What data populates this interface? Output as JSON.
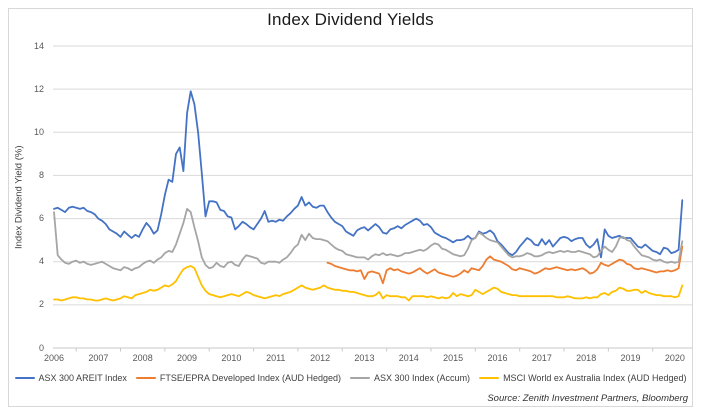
{
  "card": {
    "title": "Index Dividend Yields",
    "source": "Source: Zenith Investment Partners, Bloomberg"
  },
  "chart_data": {
    "type": "line",
    "title": "Index Dividend Yields",
    "xlabel": "",
    "ylabel": "Index Dividend Yield (%)",
    "ylim": [
      0,
      14
    ],
    "y_ticks": [
      0,
      2,
      4,
      6,
      8,
      10,
      12,
      14
    ],
    "x_year_labels": [
      "2006",
      "2007",
      "2008",
      "2009",
      "2010",
      "2011",
      "2012",
      "2013",
      "2014",
      "2015",
      "2016",
      "2017",
      "2018",
      "2019",
      "2020"
    ],
    "x_start_year": 2006,
    "points_per_year": 12,
    "grid": true,
    "legend_position": "bottom",
    "grid_color": "#d9d9d9",
    "axis_color": "#c9c9c9",
    "series": [
      {
        "name": "ASX 300 AREIT Index",
        "color": "#4472C4",
        "values": [
          6.45,
          6.5,
          6.4,
          6.3,
          6.5,
          6.55,
          6.5,
          6.45,
          6.5,
          6.35,
          6.3,
          6.2,
          6.0,
          5.9,
          5.75,
          5.5,
          5.4,
          5.3,
          5.15,
          5.4,
          5.25,
          5.1,
          5.25,
          5.15,
          5.5,
          5.8,
          5.6,
          5.3,
          5.45,
          6.2,
          7.1,
          7.8,
          7.7,
          9.0,
          9.3,
          8.2,
          10.9,
          11.9,
          11.3,
          10.0,
          8.1,
          6.1,
          6.8,
          6.8,
          6.75,
          6.4,
          6.35,
          6.1,
          6.05,
          5.5,
          5.65,
          5.85,
          5.75,
          5.6,
          5.5,
          5.75,
          6.0,
          6.35,
          5.85,
          5.9,
          5.85,
          5.95,
          5.9,
          6.1,
          6.25,
          6.45,
          6.6,
          7.0,
          6.6,
          6.75,
          6.55,
          6.5,
          6.6,
          6.6,
          6.3,
          6.05,
          5.85,
          5.75,
          5.65,
          5.4,
          5.3,
          5.2,
          5.45,
          5.55,
          5.6,
          5.45,
          5.6,
          5.75,
          5.6,
          5.35,
          5.3,
          5.5,
          5.55,
          5.65,
          5.55,
          5.7,
          5.8,
          5.9,
          6.0,
          5.9,
          5.7,
          5.75,
          5.6,
          5.35,
          5.25,
          5.15,
          5.1,
          5.0,
          4.9,
          5.0,
          5.0,
          5.05,
          5.2,
          5.05,
          5.1,
          5.4,
          5.3,
          5.35,
          5.45,
          5.3,
          4.95,
          4.8,
          4.6,
          4.4,
          4.3,
          4.45,
          4.7,
          4.9,
          5.1,
          5.0,
          4.8,
          4.75,
          5.05,
          4.8,
          5.0,
          4.7,
          4.9,
          5.1,
          5.15,
          5.1,
          4.95,
          5.05,
          5.1,
          5.1,
          4.8,
          4.65,
          4.8,
          5.05,
          4.2,
          5.5,
          5.2,
          5.1,
          5.15,
          5.2,
          5.1,
          5.1,
          5.1,
          4.9,
          4.7,
          4.65,
          4.8,
          4.65,
          4.5,
          4.45,
          4.35,
          4.65,
          4.6,
          4.4,
          4.45,
          4.55,
          6.85
        ]
      },
      {
        "name": "FTSE/EPRA Developed Index (AUD Hedged)",
        "color": "#ED7D31",
        "values": [
          null,
          null,
          null,
          null,
          null,
          null,
          null,
          null,
          null,
          null,
          null,
          null,
          null,
          null,
          null,
          null,
          null,
          null,
          null,
          null,
          null,
          null,
          null,
          null,
          null,
          null,
          null,
          null,
          null,
          null,
          null,
          null,
          null,
          null,
          null,
          null,
          null,
          null,
          null,
          null,
          null,
          null,
          null,
          null,
          null,
          null,
          null,
          null,
          null,
          null,
          null,
          null,
          null,
          null,
          null,
          null,
          null,
          null,
          null,
          null,
          null,
          null,
          null,
          null,
          null,
          null,
          null,
          null,
          null,
          null,
          null,
          null,
          null,
          null,
          3.95,
          3.9,
          3.8,
          3.75,
          3.7,
          3.65,
          3.6,
          3.6,
          3.55,
          3.6,
          3.2,
          3.5,
          3.55,
          3.5,
          3.45,
          3.0,
          3.6,
          3.7,
          3.6,
          3.65,
          3.55,
          3.5,
          3.45,
          3.5,
          3.6,
          3.7,
          3.55,
          3.45,
          3.55,
          3.65,
          3.5,
          3.45,
          3.4,
          3.35,
          3.3,
          3.35,
          3.45,
          3.6,
          3.5,
          3.7,
          3.65,
          3.6,
          3.8,
          4.1,
          4.25,
          4.1,
          4.05,
          4.0,
          3.9,
          3.8,
          3.65,
          3.6,
          3.7,
          3.65,
          3.6,
          3.55,
          3.45,
          3.5,
          3.6,
          3.7,
          3.65,
          3.7,
          3.75,
          3.7,
          3.65,
          3.6,
          3.65,
          3.6,
          3.65,
          3.7,
          3.6,
          3.45,
          3.5,
          3.65,
          3.95,
          3.85,
          3.8,
          3.9,
          4.0,
          4.1,
          4.05,
          3.9,
          3.85,
          3.7,
          3.65,
          3.7,
          3.65,
          3.6,
          3.55,
          3.5,
          3.55,
          3.55,
          3.6,
          3.55,
          3.6,
          3.7,
          4.7
        ]
      },
      {
        "name": "ASX 300 Index (Accum)",
        "color": "#A5A5A5",
        "values": [
          6.3,
          4.3,
          4.1,
          3.95,
          3.9,
          4.0,
          4.05,
          3.95,
          4.0,
          3.9,
          3.85,
          3.9,
          3.95,
          4.0,
          3.9,
          3.8,
          3.7,
          3.65,
          3.6,
          3.75,
          3.7,
          3.6,
          3.7,
          3.75,
          3.9,
          4.0,
          4.05,
          3.95,
          4.1,
          4.2,
          4.4,
          4.5,
          4.45,
          4.8,
          5.3,
          5.8,
          6.45,
          6.3,
          5.6,
          4.95,
          4.2,
          3.85,
          3.7,
          3.75,
          3.95,
          3.8,
          3.75,
          3.95,
          4.0,
          3.85,
          3.8,
          4.1,
          4.3,
          4.25,
          4.2,
          4.15,
          3.95,
          3.9,
          4.0,
          4.0,
          4.0,
          3.95,
          4.1,
          4.2,
          4.4,
          4.65,
          4.8,
          5.25,
          5.0,
          5.3,
          5.1,
          5.05,
          5.05,
          5.0,
          4.95,
          4.8,
          4.65,
          4.55,
          4.5,
          4.35,
          4.3,
          4.25,
          4.2,
          4.2,
          4.2,
          4.1,
          4.25,
          4.35,
          4.3,
          4.4,
          4.3,
          4.35,
          4.3,
          4.25,
          4.3,
          4.4,
          4.4,
          4.45,
          4.5,
          4.55,
          4.5,
          4.6,
          4.75,
          4.85,
          4.8,
          4.6,
          4.55,
          4.45,
          4.35,
          4.3,
          4.25,
          4.3,
          4.6,
          5.0,
          5.1,
          5.35,
          5.25,
          5.1,
          5.0,
          4.95,
          4.9,
          4.7,
          4.5,
          4.3,
          4.2,
          4.25,
          4.25,
          4.3,
          4.4,
          4.35,
          4.25,
          4.25,
          4.3,
          4.4,
          4.45,
          4.4,
          4.45,
          4.5,
          4.45,
          4.5,
          4.45,
          4.45,
          4.5,
          4.45,
          4.4,
          4.35,
          4.2,
          4.25,
          4.5,
          4.7,
          4.55,
          4.45,
          4.7,
          5.1,
          5.15,
          5.0,
          4.95,
          4.7,
          4.5,
          4.3,
          4.25,
          4.2,
          4.1,
          4.05,
          4.1,
          4.0,
          3.95,
          4.0,
          3.95,
          4.0,
          4.95
        ]
      },
      {
        "name": "MSCI World ex Australia Index (AUD Hedged)",
        "color": "#FFC000",
        "values": [
          2.25,
          2.25,
          2.2,
          2.25,
          2.3,
          2.35,
          2.35,
          2.3,
          2.3,
          2.25,
          2.25,
          2.2,
          2.2,
          2.25,
          2.3,
          2.25,
          2.2,
          2.25,
          2.3,
          2.4,
          2.35,
          2.3,
          2.45,
          2.5,
          2.55,
          2.6,
          2.7,
          2.65,
          2.7,
          2.8,
          2.9,
          2.85,
          2.95,
          3.1,
          3.4,
          3.65,
          3.75,
          3.8,
          3.7,
          3.3,
          2.9,
          2.65,
          2.5,
          2.45,
          2.4,
          2.35,
          2.4,
          2.45,
          2.5,
          2.45,
          2.4,
          2.5,
          2.6,
          2.55,
          2.45,
          2.4,
          2.35,
          2.3,
          2.35,
          2.4,
          2.45,
          2.4,
          2.5,
          2.55,
          2.6,
          2.7,
          2.8,
          2.9,
          2.8,
          2.75,
          2.7,
          2.75,
          2.8,
          2.9,
          2.8,
          2.75,
          2.7,
          2.7,
          2.65,
          2.65,
          2.6,
          2.6,
          2.55,
          2.5,
          2.45,
          2.4,
          2.4,
          2.45,
          2.6,
          2.3,
          2.45,
          2.4,
          2.4,
          2.4,
          2.35,
          2.35,
          2.2,
          2.4,
          2.4,
          2.4,
          2.4,
          2.35,
          2.4,
          2.35,
          2.3,
          2.35,
          2.3,
          2.35,
          2.55,
          2.4,
          2.5,
          2.45,
          2.4,
          2.45,
          2.7,
          2.6,
          2.5,
          2.6,
          2.7,
          2.8,
          2.75,
          2.6,
          2.55,
          2.5,
          2.45,
          2.45,
          2.4,
          2.4,
          2.4,
          2.4,
          2.4,
          2.4,
          2.4,
          2.4,
          2.4,
          2.4,
          2.35,
          2.35,
          2.35,
          2.4,
          2.35,
          2.3,
          2.3,
          2.3,
          2.35,
          2.3,
          2.35,
          2.35,
          2.5,
          2.55,
          2.45,
          2.6,
          2.65,
          2.8,
          2.75,
          2.65,
          2.65,
          2.7,
          2.7,
          2.55,
          2.65,
          2.55,
          2.5,
          2.45,
          2.45,
          2.4,
          2.4,
          2.4,
          2.35,
          2.4,
          2.9
        ]
      }
    ]
  }
}
